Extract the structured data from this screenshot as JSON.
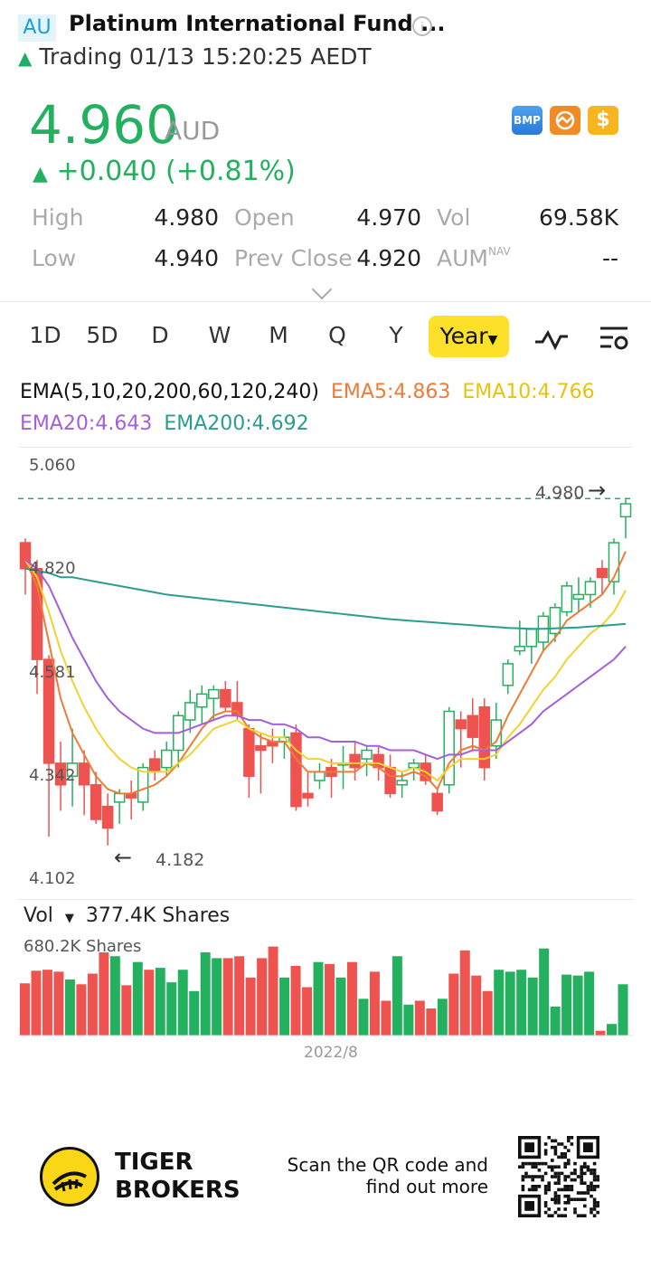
{
  "header": {
    "market_badge": "AU",
    "title": "Platinum International Fund ...",
    "status_text": "Trading 01/13 15:20:25 AEDT"
  },
  "quote": {
    "price": "4.960",
    "currency": "AUD",
    "change": "+0.040 (+0.81%)",
    "icons": [
      "bmp-icon",
      "network-icon",
      "dollar-icon"
    ],
    "icon_labels": {
      "bmp": "BMP",
      "dollar": "$"
    }
  },
  "stats": {
    "high_label": "High",
    "high_value": "4.980",
    "open_label": "Open",
    "open_value": "4.970",
    "vol_label": "Vol",
    "vol_value": "69.58K",
    "low_label": "Low",
    "low_value": "4.940",
    "prev_close_label": "Prev Close",
    "prev_close_value": "4.920",
    "aum_label": "AUM",
    "aum_sup": "NAV",
    "aum_value": "--"
  },
  "tabs": [
    "1D",
    "5D",
    "D",
    "W",
    "M",
    "Q",
    "Y"
  ],
  "active_tab": "Year",
  "ema": {
    "title": "EMA(5,10,20,200,60,120,240)",
    "ema5": "EMA5:4.863",
    "ema10": "EMA10:4.766",
    "ema20": "EMA20:4.643",
    "ema200": "EMA200:4.692"
  },
  "colors": {
    "up": "#23b05f",
    "down": "#ef5350",
    "ema5": "#ee7b37",
    "ema10": "#f2d22e",
    "ema20": "#a55fd8",
    "ema200": "#2a9d8f"
  },
  "chart_data": {
    "type": "candlestick",
    "y_ticks": [
      "5.060",
      "4.820",
      "4.581",
      "4.342",
      "4.102"
    ],
    "ylim": [
      4.102,
      5.06
    ],
    "last_price_marker": "4.980",
    "low_marker": "4.182",
    "x_tick": "2022/8",
    "candles": [
      {
        "o": 4.88,
        "h": 4.89,
        "l": 4.76,
        "c": 4.82
      },
      {
        "o": 4.82,
        "h": 4.84,
        "l": 4.53,
        "c": 4.61
      },
      {
        "o": 4.61,
        "h": 4.62,
        "l": 4.2,
        "c": 4.37
      },
      {
        "o": 4.37,
        "h": 4.42,
        "l": 4.26,
        "c": 4.32
      },
      {
        "o": 4.34,
        "h": 4.45,
        "l": 4.27,
        "c": 4.37
      },
      {
        "o": 4.37,
        "h": 4.4,
        "l": 4.25,
        "c": 4.32
      },
      {
        "o": 4.32,
        "h": 4.35,
        "l": 4.23,
        "c": 4.24
      },
      {
        "o": 4.27,
        "h": 4.3,
        "l": 4.18,
        "c": 4.22
      },
      {
        "o": 4.28,
        "h": 4.31,
        "l": 4.23,
        "c": 4.3
      },
      {
        "o": 4.3,
        "h": 4.33,
        "l": 4.24,
        "c": 4.29
      },
      {
        "o": 4.28,
        "h": 4.37,
        "l": 4.26,
        "c": 4.36
      },
      {
        "o": 4.38,
        "h": 4.4,
        "l": 4.33,
        "c": 4.35
      },
      {
        "o": 4.36,
        "h": 4.42,
        "l": 4.34,
        "c": 4.4
      },
      {
        "o": 4.4,
        "h": 4.49,
        "l": 4.36,
        "c": 4.48
      },
      {
        "o": 4.47,
        "h": 4.54,
        "l": 4.44,
        "c": 4.51
      },
      {
        "o": 4.5,
        "h": 4.55,
        "l": 4.46,
        "c": 4.53
      },
      {
        "o": 4.52,
        "h": 4.55,
        "l": 4.47,
        "c": 4.54
      },
      {
        "o": 4.54,
        "h": 4.56,
        "l": 4.49,
        "c": 4.5
      },
      {
        "o": 4.51,
        "h": 4.56,
        "l": 4.47,
        "c": 4.48
      },
      {
        "o": 4.45,
        "h": 4.46,
        "l": 4.29,
        "c": 4.34
      },
      {
        "o": 4.41,
        "h": 4.44,
        "l": 4.3,
        "c": 4.4
      },
      {
        "o": 4.42,
        "h": 4.45,
        "l": 4.37,
        "c": 4.41
      },
      {
        "o": 4.42,
        "h": 4.45,
        "l": 4.38,
        "c": 4.43
      },
      {
        "o": 4.44,
        "h": 4.46,
        "l": 4.26,
        "c": 4.27
      },
      {
        "o": 4.3,
        "h": 4.35,
        "l": 4.27,
        "c": 4.29
      },
      {
        "o": 4.33,
        "h": 4.37,
        "l": 4.31,
        "c": 4.35
      },
      {
        "o": 4.36,
        "h": 4.38,
        "l": 4.29,
        "c": 4.34
      },
      {
        "o": 4.37,
        "h": 4.41,
        "l": 4.31,
        "c": 4.37
      },
      {
        "o": 4.39,
        "h": 4.42,
        "l": 4.33,
        "c": 4.36
      },
      {
        "o": 4.38,
        "h": 4.41,
        "l": 4.34,
        "c": 4.4
      },
      {
        "o": 4.39,
        "h": 4.41,
        "l": 4.33,
        "c": 4.36
      },
      {
        "o": 4.36,
        "h": 4.39,
        "l": 4.29,
        "c": 4.3
      },
      {
        "o": 4.32,
        "h": 4.35,
        "l": 4.29,
        "c": 4.33
      },
      {
        "o": 4.36,
        "h": 4.38,
        "l": 4.33,
        "c": 4.37
      },
      {
        "o": 4.37,
        "h": 4.39,
        "l": 4.32,
        "c": 4.33
      },
      {
        "o": 4.3,
        "h": 4.31,
        "l": 4.25,
        "c": 4.26
      },
      {
        "o": 4.32,
        "h": 4.5,
        "l": 4.3,
        "c": 4.49
      },
      {
        "o": 4.47,
        "h": 4.49,
        "l": 4.36,
        "c": 4.45
      },
      {
        "o": 4.48,
        "h": 4.52,
        "l": 4.4,
        "c": 4.43
      },
      {
        "o": 4.5,
        "h": 4.52,
        "l": 4.33,
        "c": 4.36
      },
      {
        "o": 4.41,
        "h": 4.51,
        "l": 4.38,
        "c": 4.47
      },
      {
        "o": 4.55,
        "h": 4.61,
        "l": 4.53,
        "c": 4.6
      },
      {
        "o": 4.63,
        "h": 4.7,
        "l": 4.62,
        "c": 4.64
      },
      {
        "o": 4.64,
        "h": 4.68,
        "l": 4.6,
        "c": 4.68
      },
      {
        "o": 4.65,
        "h": 4.72,
        "l": 4.63,
        "c": 4.71
      },
      {
        "o": 4.67,
        "h": 4.74,
        "l": 4.65,
        "c": 4.73
      },
      {
        "o": 4.72,
        "h": 4.79,
        "l": 4.71,
        "c": 4.78
      },
      {
        "o": 4.75,
        "h": 4.8,
        "l": 4.72,
        "c": 4.76
      },
      {
        "o": 4.76,
        "h": 4.8,
        "l": 4.73,
        "c": 4.79
      },
      {
        "o": 4.82,
        "h": 4.84,
        "l": 4.76,
        "c": 4.8
      },
      {
        "o": 4.79,
        "h": 4.89,
        "l": 4.76,
        "c": 4.88
      },
      {
        "o": 4.94,
        "h": 4.98,
        "l": 4.89,
        "c": 4.97
      }
    ],
    "ema_series": {
      "ema5": [
        4.84,
        4.78,
        4.65,
        4.52,
        4.44,
        4.39,
        4.34,
        4.31,
        4.3,
        4.3,
        4.31,
        4.32,
        4.34,
        4.37,
        4.41,
        4.45,
        4.48,
        4.49,
        4.49,
        4.45,
        4.43,
        4.42,
        4.42,
        4.38,
        4.35,
        4.35,
        4.35,
        4.35,
        4.35,
        4.37,
        4.36,
        4.34,
        4.34,
        4.35,
        4.34,
        4.31,
        4.37,
        4.4,
        4.41,
        4.4,
        4.42,
        4.48,
        4.53,
        4.58,
        4.63,
        4.66,
        4.7,
        4.72,
        4.74,
        4.76,
        4.8,
        4.86
      ],
      "ema10": [
        4.84,
        4.8,
        4.72,
        4.63,
        4.56,
        4.5,
        4.45,
        4.41,
        4.38,
        4.36,
        4.35,
        4.35,
        4.35,
        4.37,
        4.39,
        4.42,
        4.45,
        4.46,
        4.47,
        4.45,
        4.44,
        4.43,
        4.43,
        4.4,
        4.38,
        4.38,
        4.37,
        4.37,
        4.37,
        4.37,
        4.37,
        4.36,
        4.35,
        4.36,
        4.35,
        4.33,
        4.36,
        4.38,
        4.38,
        4.38,
        4.39,
        4.43,
        4.46,
        4.5,
        4.54,
        4.57,
        4.61,
        4.64,
        4.67,
        4.69,
        4.72,
        4.77
      ],
      "ema20": [
        4.84,
        4.82,
        4.78,
        4.72,
        4.66,
        4.61,
        4.56,
        4.52,
        4.49,
        4.47,
        4.45,
        4.44,
        4.44,
        4.44,
        4.45,
        4.46,
        4.47,
        4.48,
        4.48,
        4.47,
        4.47,
        4.46,
        4.46,
        4.45,
        4.43,
        4.43,
        4.42,
        4.42,
        4.42,
        4.41,
        4.41,
        4.4,
        4.4,
        4.4,
        4.39,
        4.38,
        4.39,
        4.39,
        4.4,
        4.4,
        4.4,
        4.42,
        4.44,
        4.46,
        4.49,
        4.51,
        4.53,
        4.55,
        4.57,
        4.59,
        4.61,
        4.64
      ],
      "ema200": [
        4.82,
        4.815,
        4.81,
        4.8,
        4.8,
        4.795,
        4.79,
        4.785,
        4.78,
        4.775,
        4.77,
        4.765,
        4.76,
        4.757,
        4.754,
        4.751,
        4.748,
        4.745,
        4.742,
        4.739,
        4.736,
        4.733,
        4.73,
        4.727,
        4.724,
        4.721,
        4.718,
        4.715,
        4.712,
        4.709,
        4.706,
        4.703,
        4.701,
        4.699,
        4.697,
        4.695,
        4.693,
        4.691,
        4.689,
        4.687,
        4.685,
        4.683,
        4.682,
        4.681,
        4.681,
        4.682,
        4.683,
        4.684,
        4.686,
        4.688,
        4.69,
        4.692
      ]
    },
    "volume_label": "Vol",
    "volume_value": "377.4K Shares",
    "volume_max": "680.2K Shares",
    "volume": [
      0.54,
      0.67,
      0.68,
      0.66,
      0.58,
      0.53,
      0.64,
      0.86,
      0.82,
      0.52,
      0.76,
      0.68,
      0.7,
      0.55,
      0.68,
      0.46,
      0.86,
      0.8,
      0.8,
      0.82,
      0.6,
      0.8,
      0.92,
      0.6,
      0.72,
      0.5,
      0.76,
      0.74,
      0.6,
      0.76,
      0.38,
      0.66,
      0.36,
      0.82,
      0.32,
      0.36,
      0.28,
      0.38,
      0.64,
      0.88,
      0.62,
      0.46,
      0.68,
      0.66,
      0.68,
      0.6,
      0.9,
      0.3,
      0.63,
      0.62,
      0.66,
      0.05,
      0.12,
      0.53
    ]
  },
  "footer": {
    "brand_line1": "TIGER",
    "brand_line2": "BROKERS",
    "scan_line1": "Scan the QR code and",
    "scan_line2": "find out more"
  }
}
